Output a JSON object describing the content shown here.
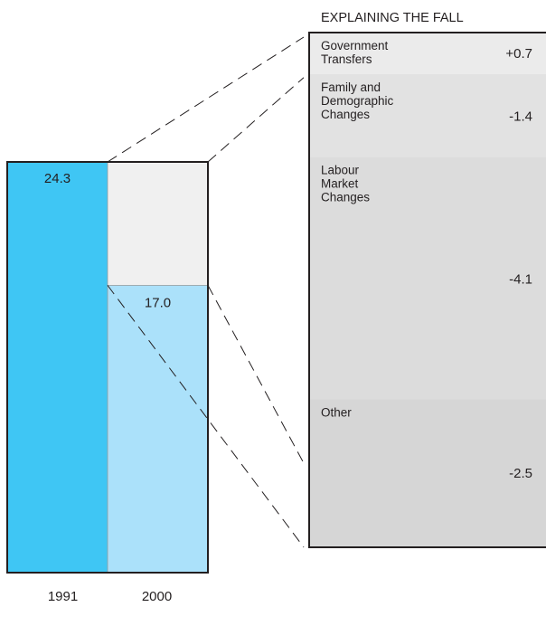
{
  "chart_data": {
    "type": "bar",
    "title": "EXPLAINING THE FALL",
    "categories": [
      "1991",
      "2000"
    ],
    "values": [
      24.3,
      17.0
    ],
    "value_labels": [
      "24.3",
      "17.0"
    ],
    "ylim": [
      0,
      24.3
    ],
    "breakdown": [
      {
        "name": "Government Transfers",
        "lines": [
          "Government",
          "Transfers"
        ],
        "value": 0.7,
        "label": "+0.7"
      },
      {
        "name": "Family and Demographic Changes",
        "lines": [
          "Family and",
          "Demographic",
          "Changes"
        ],
        "value": -1.4,
        "label": "-1.4"
      },
      {
        "name": "Labour Market Changes",
        "lines": [
          "Labour",
          "Market",
          "Changes"
        ],
        "value": -4.1,
        "label": "-4.1"
      },
      {
        "name": "Other",
        "lines": [
          "Other"
        ],
        "value": -2.5,
        "label": "-2.5"
      }
    ],
    "colors": {
      "bar_1991": "#3fc6f4",
      "bar_2000": "#abe1fa",
      "gap": "#f0f0f0",
      "breakdown_shades": [
        "#ebebeb",
        "#e2e2e2",
        "#dcdcdc",
        "#d6d6d6"
      ],
      "outline": "#231f20"
    }
  }
}
